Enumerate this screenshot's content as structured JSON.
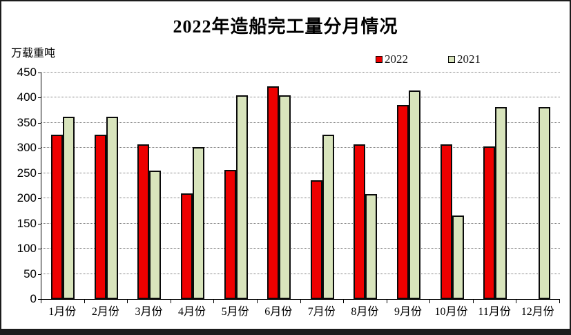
{
  "page": {
    "title": "2022年造船完工量分月情况",
    "y_unit_label": "万载重吨"
  },
  "legend": {
    "items": [
      {
        "label": "2022",
        "color": "#ee0000"
      },
      {
        "label": "2021",
        "color": "#d8e4bc"
      }
    ]
  },
  "colors": {
    "series_2022": "#ee0000",
    "series_2021": "#d8e4bc",
    "bar_border": "#0a0a0a",
    "gridline": "#7b7b7b",
    "axis": "#000000",
    "frame_border": "#1c1c1c"
  },
  "chart_data": {
    "type": "bar",
    "title": "2022年造船完工量分月情况",
    "ylabel": "万载重吨",
    "xlabel": "",
    "categories": [
      "1月份",
      "2月份",
      "3月份",
      "4月份",
      "5月份",
      "6月份",
      "7月份",
      "8月份",
      "9月份",
      "10月份",
      "11月份",
      "12月份"
    ],
    "series": [
      {
        "name": "2022",
        "color": "#ee0000",
        "values": [
          327,
          327,
          308,
          210,
          256,
          422,
          236,
          308,
          386,
          307,
          303,
          null
        ]
      },
      {
        "name": "2021",
        "color": "#d8e4bc",
        "values": [
          362,
          362,
          255,
          302,
          405,
          405,
          327,
          208,
          415,
          166,
          381,
          382
        ]
      }
    ],
    "ylim": [
      0,
      450
    ],
    "ytick_step": 50,
    "grid": "horizontal-dotted",
    "legend_position": "top-right",
    "note_missing": "2022 series has no December bar"
  }
}
